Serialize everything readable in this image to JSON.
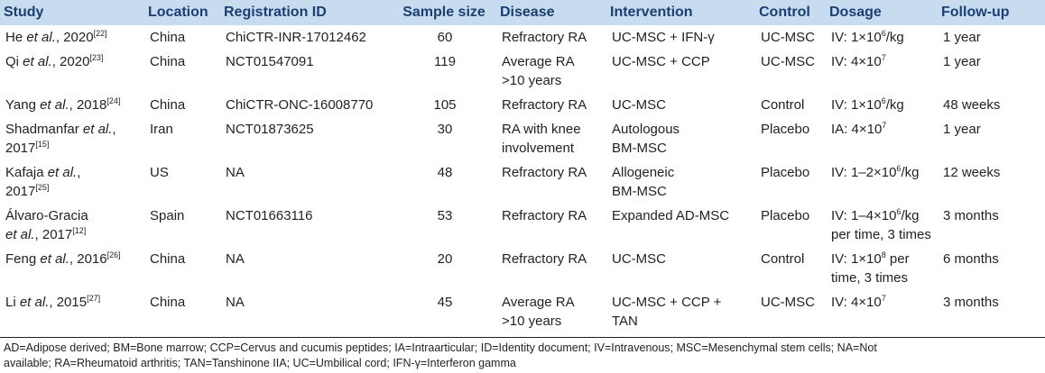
{
  "table": {
    "columns": [
      "Study",
      "Location",
      "Registration ID",
      "Sample size",
      "Disease",
      "Intervention",
      "Control",
      "Dosage",
      "Follow-up"
    ],
    "rows": [
      [
        [
          [
            "He ",
            {
              "i": "et al."
            },
            ", 2020",
            {
              "sup": "[22]"
            }
          ]
        ],
        [
          [
            "China"
          ]
        ],
        [
          [
            "ChiCTR-INR-17012462"
          ]
        ],
        [
          [
            60
          ]
        ],
        [
          [
            "Refractory RA"
          ]
        ],
        [
          [
            "UC-MSC + IFN-γ"
          ]
        ],
        [
          [
            "UC-MSC"
          ]
        ],
        [
          [
            "IV: 1×10",
            {
              "sup": "6"
            },
            "/kg"
          ]
        ],
        [
          [
            "1 year"
          ]
        ]
      ],
      [
        [
          [
            "Qi ",
            {
              "i": "et al."
            },
            ", 2020",
            {
              "sup": "[23]"
            }
          ]
        ],
        [
          [
            "China"
          ]
        ],
        [
          [
            "NCT01547091"
          ]
        ],
        [
          [
            119
          ]
        ],
        [
          [
            "Average RA"
          ],
          [
            ">10 years"
          ]
        ],
        [
          [
            "UC-MSC + CCP"
          ]
        ],
        [
          [
            "UC-MSC"
          ]
        ],
        [
          [
            "IV: 4×10",
            {
              "sup": "7"
            }
          ]
        ],
        [
          [
            "1 year"
          ]
        ]
      ],
      [
        [
          [
            "Yang ",
            {
              "i": "et al."
            },
            ", 2018",
            {
              "sup": "[24]"
            }
          ]
        ],
        [
          [
            "China"
          ]
        ],
        [
          [
            "ChiCTR-ONC-16008770"
          ]
        ],
        [
          [
            105
          ]
        ],
        [
          [
            "Refractory RA"
          ]
        ],
        [
          [
            "UC-MSC"
          ]
        ],
        [
          [
            "Control"
          ]
        ],
        [
          [
            "IV: 1×10",
            {
              "sup": "6"
            },
            "/kg"
          ]
        ],
        [
          [
            "48 weeks"
          ]
        ]
      ],
      [
        [
          [
            "Shadmanfar ",
            {
              "i": "et al."
            },
            ","
          ],
          [
            "2017",
            {
              "sup": "[15]"
            }
          ]
        ],
        [
          [
            "Iran"
          ]
        ],
        [
          [
            "NCT01873625"
          ]
        ],
        [
          [
            30
          ]
        ],
        [
          [
            "RA with knee"
          ],
          [
            "involvement"
          ]
        ],
        [
          [
            "Autologous"
          ],
          [
            "BM-MSC"
          ]
        ],
        [
          [
            "Placebo"
          ]
        ],
        [
          [
            "IA: 4×10",
            {
              "sup": "7"
            }
          ]
        ],
        [
          [
            "1 year"
          ]
        ]
      ],
      [
        [
          [
            "Kafaja ",
            {
              "i": "et al."
            },
            ","
          ],
          [
            "2017",
            {
              "sup": "[25]"
            }
          ]
        ],
        [
          [
            "US"
          ]
        ],
        [
          [
            "NA"
          ]
        ],
        [
          [
            48
          ]
        ],
        [
          [
            "Refractory RA"
          ]
        ],
        [
          [
            "Allogeneic"
          ],
          [
            "BM-MSC"
          ]
        ],
        [
          [
            "Placebo"
          ]
        ],
        [
          [
            "IV: 1–2×10",
            {
              "sup": "6"
            },
            "/kg"
          ]
        ],
        [
          [
            "12 weeks"
          ]
        ]
      ],
      [
        [
          [
            "Álvaro-Gracia"
          ],
          [
            {
              "i": "et al."
            },
            ", 2017",
            {
              "sup": "[12]"
            }
          ]
        ],
        [
          [
            "Spain"
          ]
        ],
        [
          [
            "NCT01663116"
          ]
        ],
        [
          [
            53
          ]
        ],
        [
          [
            "Refractory RA"
          ]
        ],
        [
          [
            "Expanded AD-MSC"
          ]
        ],
        [
          [
            "Placebo"
          ]
        ],
        [
          [
            "IV: 1–4×10",
            {
              "sup": "6"
            },
            "/kg"
          ],
          [
            "per time, 3 times"
          ]
        ],
        [
          [
            "3 months"
          ]
        ]
      ],
      [
        [
          [
            "Feng ",
            {
              "i": "et al."
            },
            ", 2016",
            {
              "sup": "[26]"
            }
          ]
        ],
        [
          [
            "China"
          ]
        ],
        [
          [
            "NA"
          ]
        ],
        [
          [
            20
          ]
        ],
        [
          [
            "Refractory RA"
          ]
        ],
        [
          [
            "UC-MSC"
          ]
        ],
        [
          [
            "Control"
          ]
        ],
        [
          [
            "IV: 1×10",
            {
              "sup": "8"
            },
            " per"
          ],
          [
            "time, 3 times"
          ]
        ],
        [
          [
            "6 months"
          ]
        ]
      ],
      [
        [
          [
            "Li ",
            {
              "i": "et al."
            },
            ", 2015",
            {
              "sup": "[27]"
            }
          ]
        ],
        [
          [
            "China"
          ]
        ],
        [
          [
            "NA"
          ]
        ],
        [
          [
            45
          ]
        ],
        [
          [
            "Average RA"
          ],
          [
            ">10 years"
          ]
        ],
        [
          [
            "UC-MSC + CCP +"
          ],
          [
            "TAN"
          ]
        ],
        [
          [
            "UC-MSC"
          ]
        ],
        [
          [
            "IV: 4×10",
            {
              "sup": "7"
            }
          ]
        ],
        [
          [
            "3 months"
          ]
        ]
      ]
    ]
  },
  "footnote": [
    "AD=Adipose derived; BM=Bone marrow; CCP=Cervus and cucumis peptides; IA=Intraarticular; ID=Identity document; IV=Intravenous; MSC=Mesenchymal stem cells; NA=Not",
    "available; RA=Rheumatoid arthritis; TAN=Tanshinone IIA; UC=Umbilical cord; IFN-γ=Interferon gamma"
  ]
}
